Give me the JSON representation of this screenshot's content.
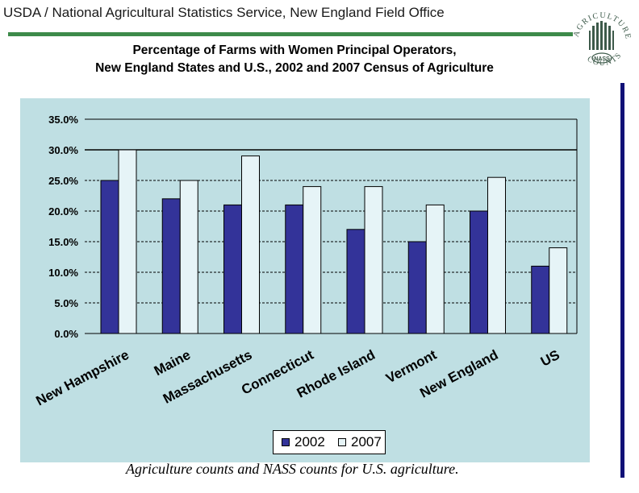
{
  "header": {
    "title": "USDA / National Agricultural Statistics Service, New England Field Office",
    "rule_color": "#3d8a4a"
  },
  "logo": {
    "arc_top": "AGRICULTURE",
    "arc_bottom": "COUNTS",
    "badge": "NASS",
    "color": "#3d5a4a"
  },
  "footer": {
    "slogan": "Agriculture counts and NASS counts for U.S. agriculture."
  },
  "chart_data": {
    "type": "bar",
    "title": "Percentage of Farms with Women Principal Operators, New England States and U.S., 2002 and 2007 Census of Agriculture",
    "title_lines": [
      "Percentage of Farms with Women Principal Operators,",
      "New England States and U.S., 2002 and 2007 Census of Agriculture"
    ],
    "categories": [
      "New Hampshire",
      "Maine",
      "Massachusetts",
      "Connecticut",
      "Rhode Island",
      "Vermont",
      "New England",
      "US"
    ],
    "series": [
      {
        "name": "2002",
        "values": [
          25,
          22,
          21,
          21,
          17,
          15,
          20,
          11
        ],
        "color": "#333399"
      },
      {
        "name": "2007",
        "values": [
          30,
          25,
          29,
          24,
          24,
          21,
          25.5,
          14
        ],
        "color": "#e6f4f7"
      }
    ],
    "yticks": [
      "0.0%",
      "5.0%",
      "10.0%",
      "15.0%",
      "20.0%",
      "25.0%",
      "30.0%",
      "35.0%"
    ],
    "ylim": [
      0,
      35
    ],
    "grid": true,
    "legend_position": "bottom-center",
    "background_color": "#bfdfe3"
  }
}
